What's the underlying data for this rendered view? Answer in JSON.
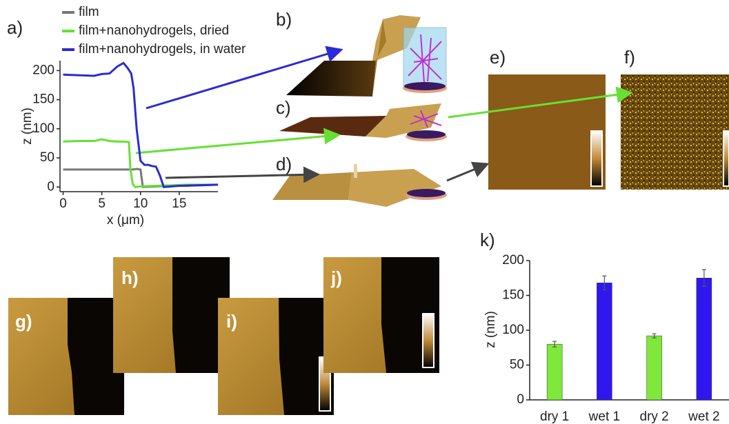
{
  "chart_data": [
    {
      "type": "line",
      "panel": "a)",
      "xlabel": "x (μm)",
      "ylabel": "z (nm)",
      "xlim": [
        -0.4,
        20
      ],
      "xticks": [
        0,
        5,
        10,
        15
      ],
      "ylim": [
        -8,
        217
      ],
      "yticks": [
        0,
        50,
        100,
        150,
        200
      ],
      "grid": false,
      "series": [
        {
          "name": "film",
          "color": "#777777",
          "x": [
            0,
            2,
            4,
            6,
            8,
            9,
            9.5,
            10,
            10.3,
            12,
            14,
            16,
            18,
            20
          ],
          "values": [
            30,
            30,
            30,
            30,
            30,
            30,
            31,
            30,
            0,
            1,
            2,
            2,
            3,
            4
          ]
        },
        {
          "name": "film+nanohydrogels, dried",
          "color": "#66e033",
          "x": [
            0,
            2,
            4,
            5,
            6,
            7,
            8,
            8.5,
            8.7,
            9,
            9.3,
            10,
            12,
            14,
            16,
            20
          ],
          "values": [
            78,
            79,
            79,
            82,
            79,
            78,
            78,
            77,
            30,
            5,
            0,
            1,
            2,
            3,
            4,
            4
          ]
        },
        {
          "name": "film+nanohydrogels, in water",
          "color": "#2a2ad6",
          "x": [
            0,
            2,
            4,
            5,
            6,
            7,
            7.8,
            8.3,
            8.8,
            9.1,
            9.5,
            10,
            10.5,
            11,
            11.5,
            12,
            12.5,
            13,
            15,
            20
          ],
          "values": [
            193,
            192,
            191,
            194,
            195,
            207,
            213,
            205,
            195,
            170,
            100,
            45,
            38,
            38,
            36,
            35,
            20,
            0,
            2,
            4
          ]
        }
      ]
    },
    {
      "type": "bar",
      "panel": "k)",
      "ylabel": "z (nm)",
      "categories": [
        "dry 1",
        "wet 1",
        "dry 2",
        "wet 2"
      ],
      "values": [
        80,
        168,
        92,
        175
      ],
      "errors": [
        4,
        10,
        3,
        12
      ],
      "colors": [
        "#7fe83a",
        "#2f17f0",
        "#7fe83a",
        "#2f17f0"
      ],
      "ylim": [
        0,
        200
      ],
      "yticks": [
        0,
        50,
        100,
        150,
        200
      ],
      "grid": false
    }
  ],
  "panel_labels": [
    "b)",
    "c)",
    "d)",
    "e)",
    "f)",
    "g)",
    "h)",
    "i)",
    "j)"
  ]
}
